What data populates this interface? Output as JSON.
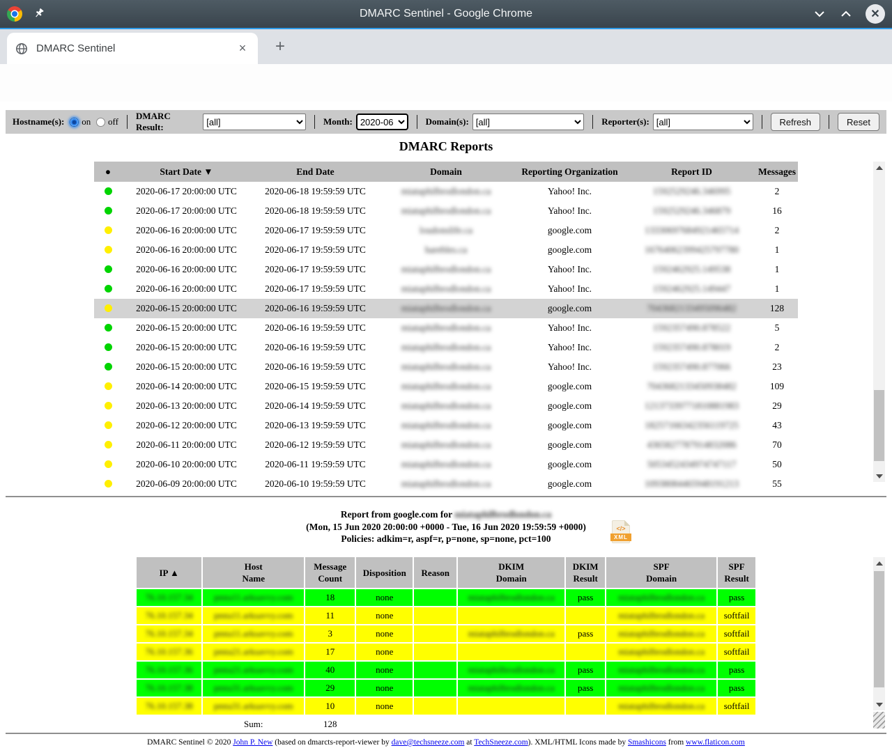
{
  "colors": {
    "titlebar_accent": "#2e9ce9",
    "dot_green": "#00d400",
    "dot_yellow": "#ffef00",
    "row_green": "#00ff00",
    "row_yellow": "#ffff00",
    "highlight_row": "#d3d3d3",
    "table_header_bg": "#c0c0c0",
    "filterbar_bg": "#c9c9c9",
    "link": "#0000ee"
  },
  "window": {
    "title": "DMARC Sentinel - Google Chrome"
  },
  "tab": {
    "title": "DMARC Sentinel",
    "close": "×",
    "new_tab": "+"
  },
  "filters": {
    "hostname_label": "Hostname(s):",
    "hostname_on": "on",
    "hostname_off": "off",
    "dmarc_label": "DMARC Result:",
    "dmarc_value": "[all]",
    "month_label": "Month:",
    "month_value": "2020-06",
    "domain_label": "Domain(s):",
    "domain_value": "[all]",
    "reporter_label": "Reporter(s):",
    "reporter_value": "[all]",
    "refresh_label": "Refresh",
    "reset_label": "Reset"
  },
  "reports": {
    "title": "DMARC Reports",
    "columns": {
      "dot": "●",
      "start": "Start Date ▼",
      "end": "End Date",
      "domain": "Domain",
      "org": "Reporting Organization",
      "id": "Report ID",
      "messages": "Messages"
    },
    "rows": [
      {
        "dot": "green",
        "start": "2020-06-17 20:00:00 UTC",
        "end": "2020-06-18 19:59:59 UTC",
        "domain": "miataphilbrodlondon.ca",
        "org": "Yahoo! Inc.",
        "id": "1592529246.346995",
        "messages": "2",
        "highlighted": false
      },
      {
        "dot": "green",
        "start": "2020-06-17 20:00:00 UTC",
        "end": "2020-06-18 19:59:59 UTC",
        "domain": "miataphilbrodlondon.ca",
        "org": "Yahoo! Inc.",
        "id": "1592529246.346879",
        "messages": "16",
        "highlighted": false
      },
      {
        "dot": "yellow",
        "start": "2020-06-16 20:00:00 UTC",
        "end": "2020-06-17 19:59:59 UTC",
        "domain": "loudonslife.ca",
        "org": "google.com",
        "id": "13330697684921465714",
        "messages": "2",
        "highlighted": false
      },
      {
        "dot": "yellow",
        "start": "2020-06-16 20:00:00 UTC",
        "end": "2020-06-17 19:59:59 UTC",
        "domain": "harebles.ca",
        "org": "google.com",
        "id": "16764062399425797780",
        "messages": "1",
        "highlighted": false
      },
      {
        "dot": "green",
        "start": "2020-06-16 20:00:00 UTC",
        "end": "2020-06-17 19:59:59 UTC",
        "domain": "miataphilbrodlondon.ca",
        "org": "Yahoo! Inc.",
        "id": "1592462925.149538",
        "messages": "1",
        "highlighted": false
      },
      {
        "dot": "green",
        "start": "2020-06-16 20:00:00 UTC",
        "end": "2020-06-17 19:59:59 UTC",
        "domain": "miataphilbrodlondon.ca",
        "org": "Yahoo! Inc.",
        "id": "1592462925.149447",
        "messages": "1",
        "highlighted": false
      },
      {
        "dot": "yellow",
        "start": "2020-06-15 20:00:00 UTC",
        "end": "2020-06-16 19:59:59 UTC",
        "domain": "miataphilbrodlondon.ca",
        "org": "google.com",
        "id": "7043682133495096482",
        "messages": "128",
        "highlighted": true
      },
      {
        "dot": "green",
        "start": "2020-06-15 20:00:00 UTC",
        "end": "2020-06-16 19:59:59 UTC",
        "domain": "miataphilbrodlondon.ca",
        "org": "Yahoo! Inc.",
        "id": "1592357490.878522",
        "messages": "5",
        "highlighted": false
      },
      {
        "dot": "green",
        "start": "2020-06-15 20:00:00 UTC",
        "end": "2020-06-16 19:59:59 UTC",
        "domain": "miataphilbrodlondon.ca",
        "org": "Yahoo! Inc.",
        "id": "1592357490.878019",
        "messages": "2",
        "highlighted": false
      },
      {
        "dot": "green",
        "start": "2020-06-15 20:00:00 UTC",
        "end": "2020-06-16 19:59:59 UTC",
        "domain": "miataphilbrodlondon.ca",
        "org": "Yahoo! Inc.",
        "id": "1592357490.877066",
        "messages": "23",
        "highlighted": false
      },
      {
        "dot": "yellow",
        "start": "2020-06-14 20:00:00 UTC",
        "end": "2020-06-15 19:59:59 UTC",
        "domain": "miataphilbrodlondon.ca",
        "org": "google.com",
        "id": "7043682133450938482",
        "messages": "109",
        "highlighted": false
      },
      {
        "dot": "yellow",
        "start": "2020-06-13 20:00:00 UTC",
        "end": "2020-06-14 19:59:59 UTC",
        "domain": "miataphilbrodlondon.ca",
        "org": "google.com",
        "id": "12137339771810881983",
        "messages": "29",
        "highlighted": false
      },
      {
        "dot": "yellow",
        "start": "2020-06-12 20:00:00 UTC",
        "end": "2020-06-13 19:59:59 UTC",
        "domain": "miataphilbrodlondon.ca",
        "org": "google.com",
        "id": "18257166342356119725",
        "messages": "43",
        "highlighted": false
      },
      {
        "dot": "yellow",
        "start": "2020-06-11 20:00:00 UTC",
        "end": "2020-06-12 19:59:59 UTC",
        "domain": "miataphilbrodlondon.ca",
        "org": "google.com",
        "id": "4365827787914832086",
        "messages": "70",
        "highlighted": false
      },
      {
        "dot": "yellow",
        "start": "2020-06-10 20:00:00 UTC",
        "end": "2020-06-11 19:59:59 UTC",
        "domain": "miataphilbrodlondon.ca",
        "org": "google.com",
        "id": "5053452434974747117",
        "messages": "50",
        "highlighted": false
      },
      {
        "dot": "yellow",
        "start": "2020-06-09 20:00:00 UTC",
        "end": "2020-06-10 19:59:59 UTC",
        "domain": "miataphilbrodlondon.ca",
        "org": "google.com",
        "id": "10938084465948191213",
        "messages": "55",
        "highlighted": false
      }
    ]
  },
  "detail": {
    "heading_prefix": "Report from google.com for ",
    "heading_domain": "miataphilbrodlondon.ca",
    "heading_dates": "(Mon, 15 Jun 2020 20:00:00 +0000 - Tue, 16 Jun 2020 19:59:59 +0000)",
    "heading_policies": "Policies: adkim=r, aspf=r, p=none, sp=none, pct=100",
    "xml_icon_label": "XML",
    "xml_icon_code": "</>",
    "columns": {
      "ip": "IP ▲",
      "host": "Host\nName",
      "count": "Message\nCount",
      "disposition": "Disposition",
      "reason": "Reason",
      "dkim_domain": "DKIM\nDomain",
      "dkim_result": "DKIM\nResult",
      "spf_domain": "SPF\nDomain",
      "spf_result": "SPF\nResult"
    },
    "rows": [
      {
        "color": "green",
        "ip": "76.10.157.34",
        "host": "pmta11.arksavvy.com",
        "count": "18",
        "disposition": "none",
        "reason": "",
        "dkim_domain": "miataphilbrodlondon.ca",
        "dkim_result": "pass",
        "spf_domain": "miataphilbrodlondon.ca",
        "spf_result": "pass"
      },
      {
        "color": "yellow",
        "ip": "76.10.157.34",
        "host": "pmta11.arksavvy.com",
        "count": "11",
        "disposition": "none",
        "reason": "",
        "dkim_domain": "",
        "dkim_result": "",
        "spf_domain": "miataphilbrodlondon.ca",
        "spf_result": "softfail"
      },
      {
        "color": "yellow",
        "ip": "76.10.157.34",
        "host": "pmta11.arksavvy.com",
        "count": "3",
        "disposition": "none",
        "reason": "",
        "dkim_domain": "miataphilbrodlondon.ca",
        "dkim_result": "pass",
        "spf_domain": "miataphilbrodlondon.ca",
        "spf_result": "softfail"
      },
      {
        "color": "yellow",
        "ip": "76.10.157.36",
        "host": "pmta21.arksavvy.com",
        "count": "17",
        "disposition": "none",
        "reason": "",
        "dkim_domain": "",
        "dkim_result": "",
        "spf_domain": "miataphilbrodlondon.ca",
        "spf_result": "softfail"
      },
      {
        "color": "green",
        "ip": "76.10.157.36",
        "host": "pmta21.arksavvy.com",
        "count": "40",
        "disposition": "none",
        "reason": "",
        "dkim_domain": "miataphilbrodlondon.ca",
        "dkim_result": "pass",
        "spf_domain": "miataphilbrodlondon.ca",
        "spf_result": "pass"
      },
      {
        "color": "green",
        "ip": "76.10.157.38",
        "host": "pmta31.arksavvy.com",
        "count": "29",
        "disposition": "none",
        "reason": "",
        "dkim_domain": "miataphilbrodlondon.ca",
        "dkim_result": "pass",
        "spf_domain": "miataphilbrodlondon.ca",
        "spf_result": "pass"
      },
      {
        "color": "yellow",
        "ip": "76.10.157.38",
        "host": "pmta31.arksavvy.com",
        "count": "10",
        "disposition": "none",
        "reason": "",
        "dkim_domain": "",
        "dkim_result": "",
        "spf_domain": "miataphilbrodlondon.ca",
        "spf_result": "softfail"
      }
    ],
    "sum_label": "Sum:",
    "sum_value": "128"
  },
  "footer": {
    "segments": [
      {
        "text": "DMARC Sentinel © 2020 ",
        "link": false
      },
      {
        "text": "John P. New",
        "link": true
      },
      {
        "text": " (based on dmarcts-report-viewer by ",
        "link": false
      },
      {
        "text": "dave@techsneeze.com",
        "link": true
      },
      {
        "text": " at ",
        "link": false
      },
      {
        "text": "TechSneeze.com",
        "link": true
      },
      {
        "text": "). XML/HTML Icons made by ",
        "link": false
      },
      {
        "text": "Smashicons",
        "link": true
      },
      {
        "text": " from ",
        "link": false
      },
      {
        "text": "www.flaticon.com",
        "link": true
      }
    ]
  }
}
